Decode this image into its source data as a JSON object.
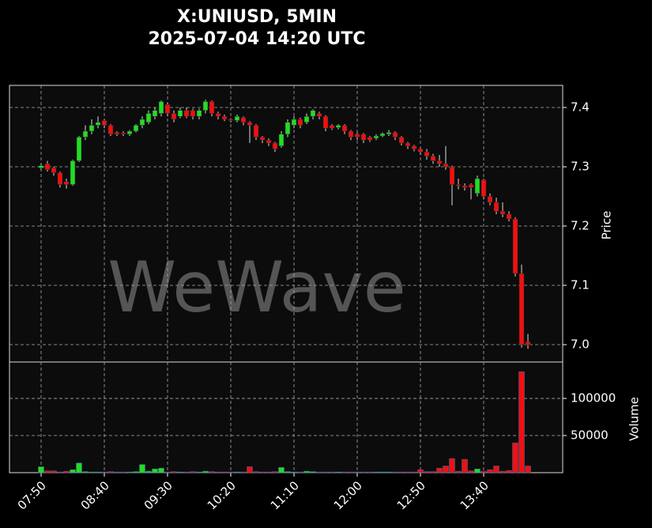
{
  "chart_data": {
    "type": "candlestick",
    "title": "X:UNIUSD, 5MIN",
    "subtitle": "2025-07-04 14:20 UTC",
    "watermark": "WeWave",
    "ylabel": "Price",
    "up_color": "#22dd22",
    "down_color": "#ee1111",
    "grid": true,
    "categories": [
      "07:50",
      null,
      null,
      null,
      null,
      null,
      null,
      null,
      null,
      null,
      "08:40",
      null,
      null,
      null,
      null,
      null,
      null,
      null,
      null,
      null,
      "09:30",
      null,
      null,
      null,
      null,
      null,
      null,
      null,
      null,
      null,
      "10:20",
      null,
      null,
      null,
      null,
      null,
      null,
      null,
      null,
      null,
      "11:10",
      null,
      null,
      null,
      null,
      null,
      null,
      null,
      null,
      null,
      "12:00",
      null,
      null,
      null,
      null,
      null,
      null,
      null,
      null,
      null,
      "12:50",
      null,
      null,
      null,
      null,
      null,
      null,
      null,
      null,
      null,
      "13:40",
      null,
      null,
      null,
      null,
      null,
      null,
      null
    ],
    "open": [
      7.298,
      7.305,
      7.298,
      7.29,
      7.275,
      7.27,
      7.31,
      7.35,
      7.36,
      7.37,
      7.378,
      7.37,
      7.358,
      7.357,
      7.355,
      7.36,
      7.37,
      7.375,
      7.385,
      7.39,
      7.405,
      7.39,
      7.385,
      7.395,
      7.395,
      7.385,
      7.395,
      7.41,
      7.39,
      7.385,
      7.38,
      7.378,
      7.383,
      7.375,
      7.37,
      7.35,
      7.345,
      7.34,
      7.335,
      7.355,
      7.37,
      7.38,
      7.375,
      7.385,
      7.39,
      7.385,
      7.37,
      7.366,
      7.37,
      7.36,
      7.355,
      7.355,
      7.35,
      7.348,
      7.352,
      7.355,
      7.358,
      7.35,
      7.34,
      7.335,
      7.33,
      7.325,
      7.318,
      7.31,
      7.305,
      7.3,
      7.27,
      7.268,
      7.27,
      7.255,
      7.278,
      7.25,
      7.24,
      7.225,
      7.22,
      7.212,
      7.12,
      7.005
    ],
    "high": [
      7.305,
      7.31,
      7.3,
      7.292,
      7.28,
      7.312,
      7.352,
      7.37,
      7.38,
      7.385,
      7.38,
      7.372,
      7.36,
      7.36,
      7.362,
      7.372,
      7.385,
      7.395,
      7.4,
      7.412,
      7.408,
      7.395,
      7.4,
      7.4,
      7.398,
      7.398,
      7.413,
      7.412,
      7.393,
      7.388,
      7.382,
      7.388,
      7.385,
      7.377,
      7.372,
      7.352,
      7.348,
      7.342,
      7.36,
      7.38,
      7.385,
      7.383,
      7.39,
      7.397,
      7.393,
      7.387,
      7.372,
      7.372,
      7.372,
      7.362,
      7.358,
      7.357,
      7.352,
      7.355,
      7.358,
      7.362,
      7.36,
      7.352,
      7.342,
      7.337,
      7.332,
      7.33,
      7.322,
      7.32,
      7.335,
      7.302,
      7.28,
      7.272,
      7.272,
      7.285,
      7.28,
      7.255,
      7.248,
      7.24,
      7.225,
      7.215,
      7.135,
      7.018
    ],
    "low": [
      7.295,
      7.292,
      7.285,
      7.265,
      7.263,
      7.268,
      7.308,
      7.345,
      7.355,
      7.365,
      7.365,
      7.352,
      7.352,
      7.352,
      7.352,
      7.358,
      7.365,
      7.372,
      7.38,
      7.385,
      7.385,
      7.375,
      7.382,
      7.382,
      7.38,
      7.38,
      7.39,
      7.385,
      7.38,
      7.377,
      7.375,
      7.375,
      7.37,
      7.34,
      7.345,
      7.34,
      7.335,
      7.325,
      7.332,
      7.35,
      7.365,
      7.365,
      7.372,
      7.38,
      7.38,
      7.36,
      7.362,
      7.363,
      7.355,
      7.345,
      7.345,
      7.34,
      7.342,
      7.345,
      7.35,
      7.352,
      7.345,
      7.336,
      7.33,
      7.326,
      7.32,
      7.312,
      7.305,
      7.3,
      7.295,
      7.235,
      7.262,
      7.26,
      7.245,
      7.25,
      7.245,
      7.235,
      7.22,
      7.215,
      7.208,
      7.115,
      6.995,
      6.993
    ],
    "close": [
      7.302,
      7.295,
      7.29,
      7.27,
      7.27,
      7.31,
      7.35,
      7.36,
      7.37,
      7.375,
      7.37,
      7.355,
      7.355,
      7.355,
      7.36,
      7.37,
      7.38,
      7.39,
      7.395,
      7.41,
      7.39,
      7.38,
      7.395,
      7.385,
      7.385,
      7.395,
      7.41,
      7.39,
      7.385,
      7.38,
      7.378,
      7.385,
      7.375,
      7.37,
      7.35,
      7.345,
      7.34,
      7.33,
      7.355,
      7.375,
      7.38,
      7.37,
      7.385,
      7.395,
      7.385,
      7.365,
      7.365,
      7.37,
      7.36,
      7.35,
      7.35,
      7.345,
      7.345,
      7.352,
      7.356,
      7.358,
      7.35,
      7.34,
      7.335,
      7.33,
      7.325,
      7.318,
      7.31,
      7.305,
      7.3,
      7.27,
      7.268,
      7.265,
      7.265,
      7.28,
      7.25,
      7.24,
      7.225,
      7.22,
      7.212,
      7.12,
      7,
      7
    ],
    "ylim": [
      6.9707,
      7.4373
    ],
    "yticks": [
      {
        "value": 7,
        "label": "7.0"
      },
      7.1,
      7.2,
      7.3,
      7.4
    ],
    "volume": {
      "ylabel": "Volume",
      "values": [
        8000,
        2500,
        2500,
        1000,
        2000,
        4000,
        13000,
        1500,
        1000,
        1000,
        1000,
        1500,
        1000,
        1000,
        1000,
        1500,
        11000,
        2000,
        5000,
        6000,
        1000,
        1500,
        1000,
        1000,
        1500,
        1000,
        2000,
        1500,
        1000,
        1000,
        1000,
        1000,
        1000,
        8000,
        1500,
        1000,
        1000,
        1500,
        7000,
        1500,
        1000,
        1000,
        2000,
        1500,
        1000,
        1000,
        1000,
        1000,
        1000,
        1000,
        1000,
        1000,
        1000,
        1000,
        1000,
        1000,
        1000,
        1000,
        1000,
        1000,
        4000,
        1500,
        1500,
        6000,
        9000,
        19000,
        2000,
        18000,
        2500,
        5000,
        2000,
        4000,
        9000,
        2000,
        3000,
        40000,
        136000,
        9000
      ],
      "ylim": [
        0,
        149000
      ],
      "yticks": [
        50000,
        100000
      ]
    }
  }
}
